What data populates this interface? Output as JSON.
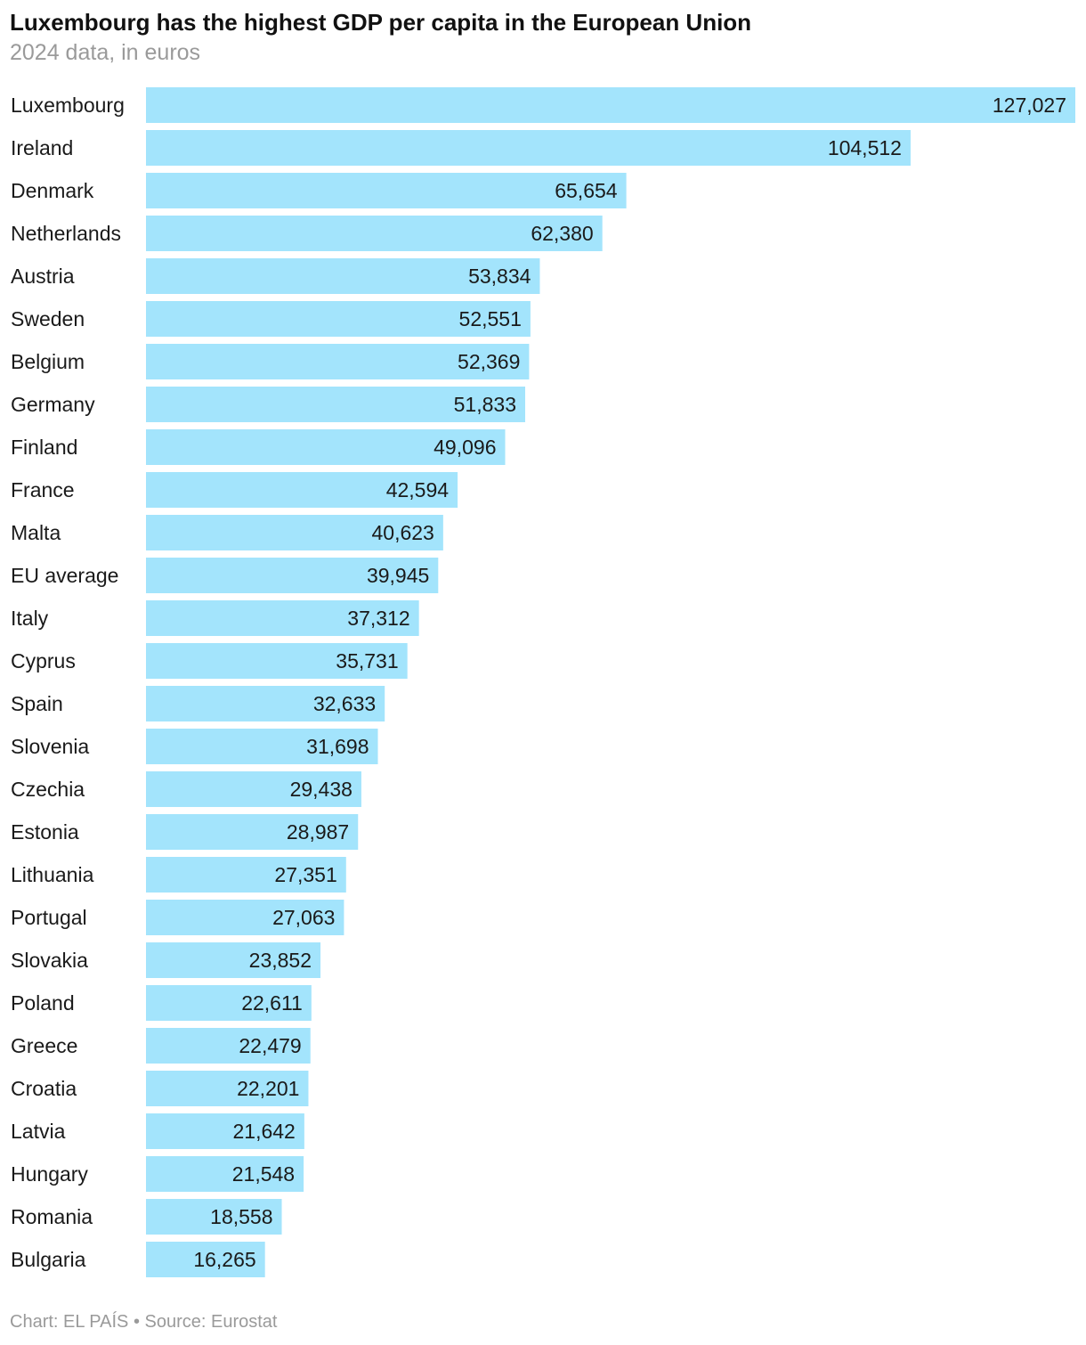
{
  "colors": {
    "bar": "#a3e4fc",
    "label": "#1a1a1a",
    "value": "#1a1a1a",
    "muted": "#9a9a9a"
  },
  "header": {
    "title": "Luxembourg has the highest GDP per capita in the European Union",
    "subtitle": "2024 data, in euros"
  },
  "footer": {
    "chart_credit": "Chart: EL PAÍS",
    "separator": " • ",
    "source": "Source: Eurostat"
  },
  "chart_data": {
    "type": "bar",
    "orientation": "horizontal",
    "title": "Luxembourg has the highest GDP per capita in the European Union",
    "subtitle": "2024 data, in euros",
    "xlim": [
      0,
      127027
    ],
    "grid": false,
    "legend": "none",
    "categories": [
      "Luxembourg",
      "Ireland",
      "Denmark",
      "Netherlands",
      "Austria",
      "Sweden",
      "Belgium",
      "Germany",
      "Finland",
      "France",
      "Malta",
      "EU average",
      "Italy",
      "Cyprus",
      "Spain",
      "Slovenia",
      "Czechia",
      "Estonia",
      "Lithuania",
      "Portugal",
      "Slovakia",
      "Poland",
      "Greece",
      "Croatia",
      "Latvia",
      "Hungary",
      "Romania",
      "Bulgaria"
    ],
    "values": [
      127027,
      104512,
      65654,
      62380,
      53834,
      52551,
      52369,
      51833,
      49096,
      42594,
      40623,
      39945,
      37312,
      35731,
      32633,
      31698,
      29438,
      28987,
      27351,
      27063,
      23852,
      22611,
      22479,
      22201,
      21642,
      21548,
      18558,
      16265
    ],
    "value_labels": [
      "127,027",
      "104,512",
      "65,654",
      "62,380",
      "53,834",
      "52,551",
      "52,369",
      "51,833",
      "49,096",
      "42,594",
      "40,623",
      "39,945",
      "37,312",
      "35,731",
      "32,633",
      "31,698",
      "29,438",
      "28,987",
      "27,351",
      "27,063",
      "23,852",
      "22,611",
      "22,479",
      "22,201",
      "21,642",
      "21,548",
      "18,558",
      "16,265"
    ]
  }
}
